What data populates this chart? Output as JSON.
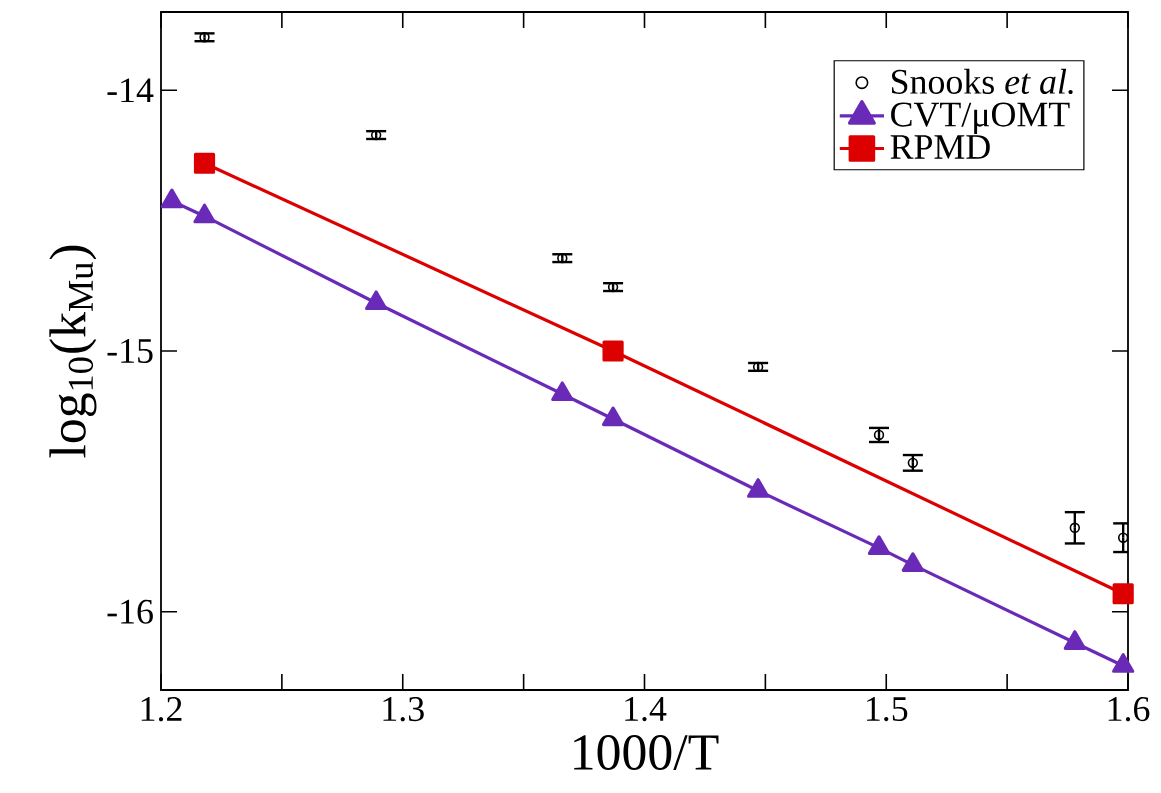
{
  "chart_data": {
    "type": "line",
    "xlabel": "1000/T",
    "ylabel": "log$_{10}$(k$_{Mu}$)",
    "x": [
      1.2045,
      1.218,
      1.289,
      1.366,
      1.387,
      1.447,
      1.497,
      1.511,
      1.578,
      1.598
    ],
    "series": [
      {
        "name": "Snooks *et al.*",
        "type": "scatter",
        "color": "#000000",
        "marker": "circle",
        "x": [
          1.218,
          1.289,
          1.366,
          1.387,
          1.447,
          1.497,
          1.511,
          1.578,
          1.598
        ],
        "values": [
          -13.797,
          -14.172,
          -14.644,
          -14.755,
          -15.061,
          -15.322,
          -15.429,
          -15.678,
          -15.716
        ],
        "errors": [
          0.015,
          0.015,
          0.015,
          0.015,
          0.015,
          0.027,
          0.03,
          0.06,
          0.055
        ]
      },
      {
        "name": "CVT/μOMT",
        "color": "#6a2ab8",
        "marker": "triangle",
        "values": [
          -14.425,
          -14.483,
          -14.816,
          -15.165,
          -15.261,
          -15.536,
          -15.755,
          -15.82,
          -16.119,
          -16.207
        ]
      },
      {
        "name": "RPMD",
        "color": "#dd0000",
        "marker": "square",
        "x": [
          1.218,
          1.387,
          1.598
        ],
        "values": [
          -14.28,
          -15.0,
          -15.931
        ]
      }
    ],
    "xlim": [
      1.2,
      1.6
    ],
    "ylim": [
      -16.3,
      -13.7
    ],
    "xticks": [
      1.2,
      1.3,
      1.4,
      1.5,
      1.6,
      {
        "value": 1.25,
        "label": null
      },
      {
        "value": 1.35,
        "label": null
      },
      {
        "value": 1.45,
        "label": null
      },
      {
        "value": 1.55,
        "label": null
      }
    ],
    "yticks": [
      -16,
      -15,
      -14
    ],
    "legend": "top right",
    "grid": false
  }
}
